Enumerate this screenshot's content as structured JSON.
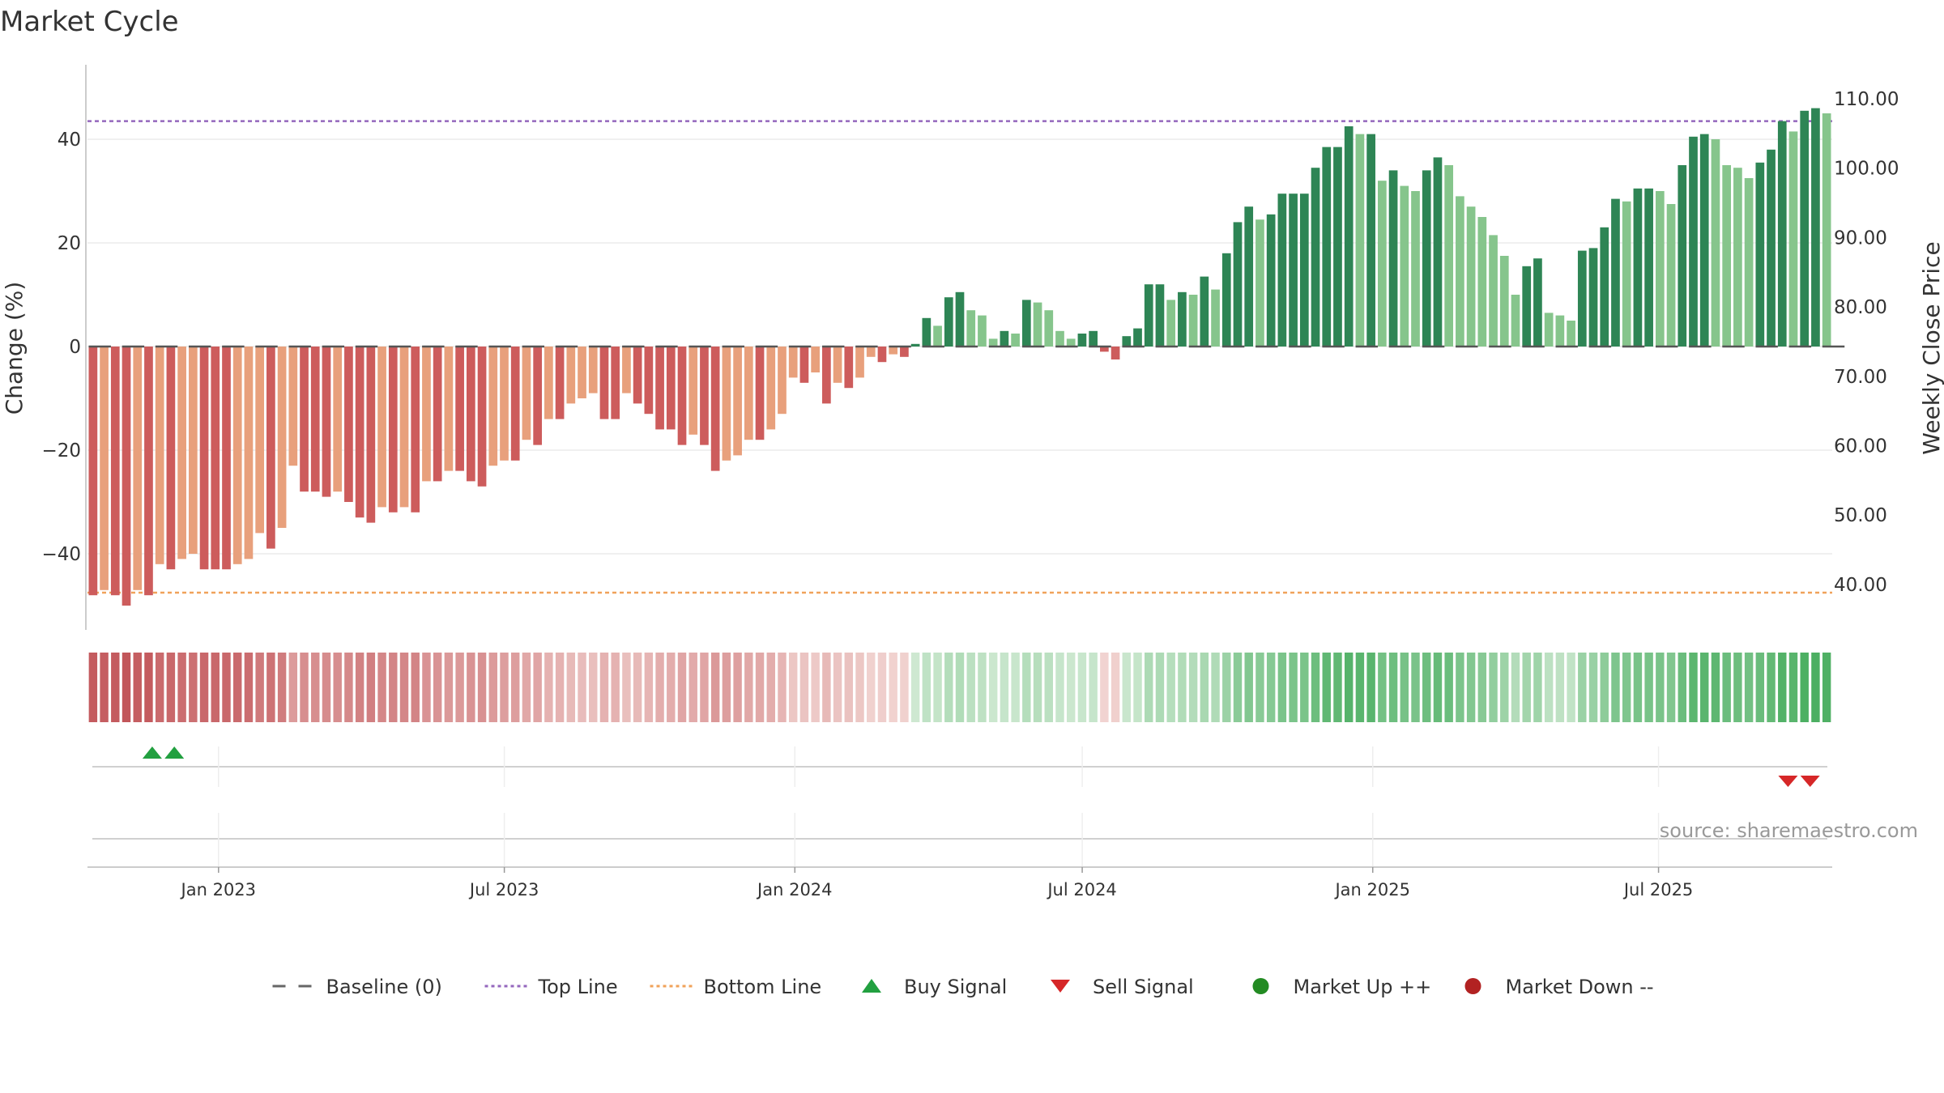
{
  "chart_data": {
    "type": "bar",
    "title": "Market Cycle",
    "ylabel_left": "Change (%)",
    "ylabel_right": "Weekly Close Price",
    "source": "source: sharemaestro.com",
    "y_left_ticks": [
      "40",
      "20",
      "0",
      "−20",
      "−40"
    ],
    "y_left_tick_values": [
      40,
      20,
      0,
      -20,
      -40
    ],
    "y_right_ticks": [
      "110.00",
      "100.00",
      "90.00",
      "80.00",
      "70.00",
      "60.00",
      "50.00",
      "40.00"
    ],
    "y_right_tick_values": [
      110,
      100,
      90,
      80,
      70,
      60,
      50,
      40
    ],
    "ylim_left": [
      -55,
      55
    ],
    "top_line": 43.5,
    "bottom_line": -47.5,
    "x_start": "2022-10-10",
    "x_end": "2025-10-19",
    "x_tick_labels": [
      "Jan 2023",
      "Jul 2023",
      "Jan 2024",
      "Jul 2024",
      "Jan 2025",
      "Jul 2025"
    ],
    "x_tick_dates": [
      "2023-01-01",
      "2023-07-01",
      "2024-01-01",
      "2024-07-01",
      "2025-01-01",
      "2025-07-01"
    ],
    "values": [
      -48,
      -47,
      -48,
      -50,
      -47,
      -48,
      -42,
      -43,
      -41,
      -40,
      -43,
      -43,
      -43,
      -42,
      -41,
      -36,
      -39,
      -35,
      -23,
      -28,
      -28,
      -29,
      -28,
      -30,
      -33,
      -34,
      -31,
      -32,
      -31,
      -32,
      -26,
      -26,
      -24,
      -24,
      -26,
      -27,
      -23,
      -22,
      -22,
      -18,
      -19,
      -14,
      -14,
      -11,
      -10,
      -9,
      -14,
      -14,
      -9,
      -11,
      -13,
      -16,
      -16,
      -19,
      -17,
      -19,
      -24,
      -22,
      -21,
      -18,
      -18,
      -16,
      -13,
      -6,
      -7,
      -5,
      -11,
      -7,
      -8,
      -6,
      -2,
      -3,
      -1.5,
      -2,
      0.5,
      5.5,
      4,
      9.5,
      10.5,
      7,
      6,
      1.5,
      3,
      2.5,
      9,
      8.5,
      7,
      3,
      1.5,
      2.5,
      3,
      -1,
      -2.5,
      2,
      3.5,
      12,
      12,
      9,
      10.5,
      10,
      13.5,
      11,
      18,
      24,
      27,
      24.5,
      25.5,
      29.5,
      29.5,
      29.5,
      34.5,
      38.5,
      38.5,
      42.5,
      41,
      41,
      32,
      34,
      31,
      30,
      34,
      36.5,
      35,
      29,
      27,
      25,
      21.5,
      17.5,
      10,
      15.5,
      17,
      6.5,
      6,
      5,
      18.5,
      19,
      23,
      28.5,
      28,
      30.5,
      30.5,
      30,
      27.5,
      35,
      40.5,
      41,
      40,
      35,
      34.5,
      32.5,
      35.5,
      38,
      43.5,
      41.5,
      45.5,
      46,
      45
    ],
    "bar_colors": {
      "strong_up": "#2e8555",
      "light_up": "#86c58c",
      "strong_down": "#cd5c5c",
      "light_down": "#e8a07c"
    },
    "strip_colors": {
      "down_deep": "#c2565a",
      "down_pale": "#f2d6d3",
      "up_pale": "#cfe9d2",
      "up_deep": "#4caf62"
    },
    "buy_signals": [
      "2022-11-20",
      "2022-12-04"
    ],
    "sell_signals": [
      "2025-09-21",
      "2025-10-05"
    ],
    "line_colors": {
      "top_line": "#9467bd",
      "bottom_line": "#f0a25a",
      "buy": "#22a040",
      "sell": "#d62728",
      "market_up": "#238b23",
      "market_down": "#b22222"
    }
  },
  "legend": [
    {
      "label": "Baseline (0)",
      "icon": "dash-line-icon"
    },
    {
      "label": "Top Line",
      "icon": "dotted-purple-line-icon"
    },
    {
      "label": "Bottom Line",
      "icon": "dotted-orange-line-icon"
    },
    {
      "label": "Buy Signal",
      "icon": "triangle-up-icon"
    },
    {
      "label": "Sell Signal",
      "icon": "triangle-down-icon"
    },
    {
      "label": "Market Up ++",
      "icon": "green-dot-icon"
    },
    {
      "label": "Market Down --",
      "icon": "red-dot-icon"
    }
  ]
}
